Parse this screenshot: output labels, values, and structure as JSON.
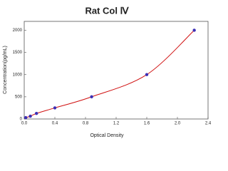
{
  "chart_data": {
    "type": "scatter",
    "title": "Rat Col Ⅳ",
    "x_label": "Optical Density",
    "y_label": "Concentration(pg/mL)",
    "x": [
      0.02,
      0.08,
      0.16,
      0.4,
      0.88,
      1.6,
      2.22
    ],
    "values": [
      31.25,
      62.5,
      125,
      250,
      500,
      1000,
      2000
    ],
    "point_color": "#3b2fb5",
    "line_color": "#d01010",
    "xlim": [
      0,
      2.4
    ],
    "xticks": [
      {
        "value": 0,
        "label": "0.0"
      },
      {
        "value": 0.4,
        "label": "0.4"
      },
      {
        "value": 0.8,
        "label": "0.8"
      },
      {
        "value": 1.2,
        "label": "1.2"
      },
      {
        "value": 1.6,
        "label": "1.6"
      },
      {
        "value": 2.0,
        "label": "2.0"
      },
      {
        "value": 2.4,
        "label": "2.4"
      }
    ],
    "ylim": [
      0,
      2200
    ],
    "yticks": [
      0,
      500,
      1000,
      1500,
      2000
    ],
    "grid": false
  }
}
